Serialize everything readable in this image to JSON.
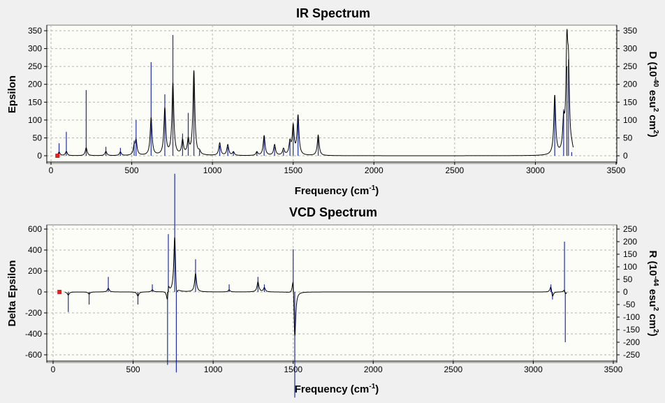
{
  "colors": {
    "background": "#f0f0f0",
    "plot_background": "#fdfdf7",
    "spectrum_line": "#000000",
    "stick_bars": "#1f2ea8",
    "marker": "#e02020",
    "grid": "#b4b4b4"
  },
  "chart_data": [
    {
      "type": "line",
      "title": "IR Spectrum",
      "xlabel": "Frequency (cm",
      "xlabel_sup": "-1",
      "xlabel_end": ")",
      "ylabel": "Epsilon",
      "y2label_parts": [
        "D (10",
        "-40",
        " esu",
        "2",
        " cm",
        "2",
        ")"
      ],
      "xlim": [
        0,
        3500
      ],
      "ylim": [
        0,
        350
      ],
      "y2lim": [
        0,
        350
      ],
      "xticks": [
        0,
        500,
        1000,
        1500,
        2000,
        2500,
        3000,
        3500
      ],
      "yticks": [
        0,
        50,
        100,
        150,
        200,
        250,
        300,
        350
      ],
      "y2ticks": [
        0,
        50,
        100,
        150,
        200,
        250,
        300,
        350
      ],
      "grid": true,
      "peaks": [
        {
          "x": 50,
          "y": 10,
          "stick": 35
        },
        {
          "x": 95,
          "y": 12,
          "stick": 67
        },
        {
          "x": 218,
          "y": 22,
          "stick": 184
        },
        {
          "x": 340,
          "y": 12,
          "stick": 25
        },
        {
          "x": 430,
          "y": 10,
          "stick": 22
        },
        {
          "x": 515,
          "y": 22,
          "stick": 42
        },
        {
          "x": 527,
          "y": 40,
          "stick": 100
        },
        {
          "x": 620,
          "y": 105,
          "stick": 262
        },
        {
          "x": 705,
          "y": 130,
          "stick": 172
        },
        {
          "x": 755,
          "y": 200,
          "stick": 338
        },
        {
          "x": 815,
          "y": 40,
          "stick": 62
        },
        {
          "x": 850,
          "y": 40,
          "stick": 120
        },
        {
          "x": 885,
          "y": 236,
          "stick": 232
        },
        {
          "x": 920,
          "y": 8,
          "stick": 15
        },
        {
          "x": 1045,
          "y": 35,
          "stick": 28
        },
        {
          "x": 1095,
          "y": 30,
          "stick": 25
        },
        {
          "x": 1130,
          "y": 10,
          "stick": 12
        },
        {
          "x": 1275,
          "y": 10,
          "stick": 12
        },
        {
          "x": 1320,
          "y": 55,
          "stick": 57
        },
        {
          "x": 1385,
          "y": 30,
          "stick": 25
        },
        {
          "x": 1440,
          "y": 18,
          "stick": 15
        },
        {
          "x": 1480,
          "y": 35,
          "stick": 40
        },
        {
          "x": 1500,
          "y": 80,
          "stick": 80
        },
        {
          "x": 1530,
          "y": 110,
          "stick": 110
        },
        {
          "x": 1655,
          "y": 57,
          "stick": 57
        },
        {
          "x": 3120,
          "y": 165,
          "stick": 170
        },
        {
          "x": 3175,
          "y": 80,
          "stick": 130
        },
        {
          "x": 3195,
          "y": 275,
          "stick": 250
        },
        {
          "x": 3205,
          "y": 200,
          "stick": 270
        },
        {
          "x": 3225,
          "y": 10,
          "stick": 10
        }
      ]
    },
    {
      "type": "line",
      "title": "VCD Spectrum",
      "xlabel": "Frequency (cm",
      "xlabel_sup": "-1",
      "xlabel_end": ")",
      "ylabel": "Delta Epsilon",
      "y2label_parts": [
        "R (10",
        "-44",
        " esu",
        "2",
        " cm",
        "2",
        ")"
      ],
      "xlim": [
        0,
        3500
      ],
      "ylim": [
        -600,
        600
      ],
      "y2lim": [
        -250,
        250
      ],
      "xticks": [
        0,
        500,
        1000,
        1500,
        2000,
        2500,
        3000,
        3500
      ],
      "yticks": [
        -600,
        -400,
        -200,
        0,
        200,
        400,
        600
      ],
      "y2ticks": [
        -250,
        -200,
        -150,
        -100,
        -50,
        0,
        50,
        100,
        150,
        200,
        250
      ],
      "grid": true,
      "peaks": [
        {
          "x": 95,
          "y": -30,
          "stick": -80
        },
        {
          "x": 225,
          "y": -20,
          "stick": -50
        },
        {
          "x": 345,
          "y": 35,
          "stick": 60
        },
        {
          "x": 530,
          "y": -40,
          "stick": -50
        },
        {
          "x": 620,
          "y": 20,
          "stick": 30
        },
        {
          "x": 715,
          "y": -150,
          "stick": -290
        },
        {
          "x": 720,
          "y": 120,
          "stick": 230
        },
        {
          "x": 760,
          "y": 570,
          "stick": 470
        },
        {
          "x": 770,
          "y": -150,
          "stick": -320
        },
        {
          "x": 890,
          "y": 175,
          "stick": 130
        },
        {
          "x": 1100,
          "y": 20,
          "stick": 30
        },
        {
          "x": 1280,
          "y": 95,
          "stick": 60
        },
        {
          "x": 1320,
          "y": 40,
          "stick": 30
        },
        {
          "x": 1500,
          "y": 230,
          "stick": 170
        },
        {
          "x": 1510,
          "y": -490,
          "stick": -420
        },
        {
          "x": 3110,
          "y": 65,
          "stick": 30
        },
        {
          "x": 3120,
          "y": -60,
          "stick": -30
        },
        {
          "x": 3195,
          "y": 40,
          "stick": 200
        },
        {
          "x": 3200,
          "y": -40,
          "stick": -200
        }
      ]
    }
  ]
}
